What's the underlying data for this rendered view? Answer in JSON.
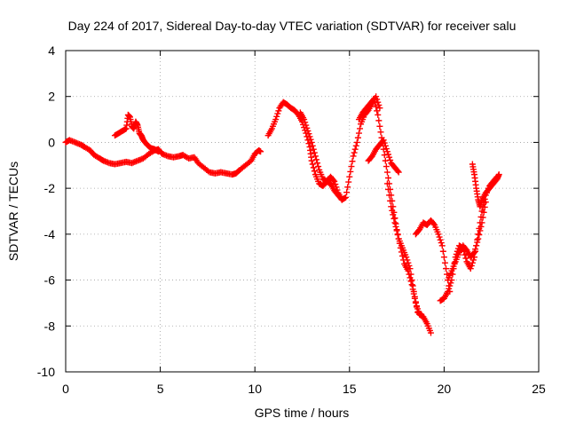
{
  "chart_data": {
    "type": "scatter",
    "title": "Day 224 of 2017, Sidereal Day-to-day VTEC variation (SDTVAR) for receiver salu",
    "xlabel": "GPS time / hours",
    "ylabel": "SDTVAR / TECUs",
    "xlim": [
      0,
      25
    ],
    "ylim": [
      -10,
      4
    ],
    "xticks": [
      0,
      5,
      10,
      15,
      20,
      25
    ],
    "yticks": [
      -10,
      -8,
      -6,
      -4,
      -2,
      0,
      2,
      4
    ],
    "xtick_labels": [
      "0",
      "5",
      "10",
      "15",
      "20",
      "25"
    ],
    "ytick_labels": [
      "-10",
      "-8",
      "-6",
      "-4",
      "-2",
      "0",
      "2",
      "4"
    ],
    "grid": true,
    "marker": "+",
    "color": "#ff0000",
    "series": [
      {
        "x": [
          0.0,
          0.2,
          0.5,
          0.8,
          1.0,
          1.3,
          1.5,
          1.8,
          2.0,
          2.3,
          2.6,
          2.9,
          3.2,
          3.5,
          3.8,
          4.1,
          4.4,
          4.7,
          4.9,
          5.1,
          5.4,
          5.7,
          6.0,
          6.2,
          6.5,
          6.8,
          7.0,
          7.3,
          7.6,
          7.9,
          8.2,
          8.5,
          8.8,
          9.0,
          9.2,
          9.5,
          9.8,
          10.0,
          10.2,
          10.3
        ],
        "y": [
          0.0,
          0.1,
          0.0,
          -0.1,
          -0.2,
          -0.35,
          -0.55,
          -0.7,
          -0.8,
          -0.9,
          -0.95,
          -0.9,
          -0.85,
          -0.9,
          -0.8,
          -0.7,
          -0.5,
          -0.35,
          -0.3,
          -0.5,
          -0.6,
          -0.65,
          -0.6,
          -0.55,
          -0.7,
          -0.65,
          -0.9,
          -1.1,
          -1.3,
          -1.35,
          -1.3,
          -1.35,
          -1.4,
          -1.35,
          -1.2,
          -1.0,
          -0.8,
          -0.5,
          -0.35,
          -0.4
        ]
      },
      {
        "x": [
          2.6,
          2.8,
          3.0,
          3.2,
          3.3,
          3.4,
          3.5,
          3.6,
          3.7,
          3.8,
          3.9,
          4.0,
          4.1,
          4.3,
          4.5,
          4.7,
          4.9
        ],
        "y": [
          0.3,
          0.4,
          0.5,
          0.6,
          1.2,
          1.1,
          0.7,
          0.6,
          0.9,
          0.75,
          0.4,
          0.3,
          0.1,
          -0.1,
          -0.25,
          -0.3,
          -0.4
        ]
      },
      {
        "x": [
          10.7,
          10.9,
          11.1,
          11.3,
          11.5,
          11.7,
          11.9,
          12.1,
          12.3,
          12.5,
          12.7,
          12.9,
          13.0,
          13.2,
          13.4,
          13.6,
          13.8,
          14.0,
          14.2,
          14.4,
          14.6,
          14.8,
          15.0,
          15.2,
          15.4,
          15.6,
          15.8,
          16.0,
          16.2,
          16.4,
          16.6
        ],
        "y": [
          0.3,
          0.6,
          1.0,
          1.5,
          1.75,
          1.65,
          1.5,
          1.4,
          1.2,
          0.9,
          0.4,
          -0.2,
          -0.8,
          -1.4,
          -1.8,
          -1.9,
          -1.7,
          -1.8,
          -2.1,
          -2.3,
          -2.5,
          -2.4,
          -1.5,
          -0.6,
          0.0,
          0.8,
          1.2,
          1.4,
          1.7,
          2.0,
          1.5
        ]
      },
      {
        "x": [
          12.4,
          12.6,
          12.8,
          13.0,
          13.2,
          13.4,
          13.6,
          13.8,
          14.0,
          14.2,
          14.4,
          14.6
        ],
        "y": [
          1.3,
          1.0,
          0.5,
          0.0,
          -0.6,
          -1.2,
          -1.6,
          -1.7,
          -1.5,
          -1.7,
          -2.2,
          -2.5
        ]
      },
      {
        "x": [
          16.0,
          16.2,
          16.4,
          16.6,
          16.8,
          17.0,
          17.2,
          17.4,
          17.6
        ],
        "y": [
          -0.8,
          -0.6,
          -0.3,
          -0.1,
          0.1,
          -0.4,
          -0.9,
          -1.1,
          -1.3
        ]
      },
      {
        "x": [
          15.5,
          15.7,
          15.9,
          16.1,
          16.3,
          16.5,
          16.7,
          16.9,
          17.1,
          17.3,
          17.5,
          17.7,
          17.9,
          18.1,
          18.3,
          18.5,
          18.7,
          18.9,
          19.1,
          19.3
        ],
        "y": [
          1.0,
          1.3,
          1.5,
          1.7,
          1.9,
          1.2,
          0.2,
          -0.8,
          -1.8,
          -2.8,
          -3.8,
          -4.6,
          -5.3,
          -5.6,
          -6.2,
          -7.0,
          -7.5,
          -7.6,
          -7.9,
          -8.3
        ]
      },
      {
        "x": [
          17.0,
          17.2,
          17.4,
          17.6,
          17.8,
          18.0,
          18.2,
          18.4,
          18.6,
          18.8
        ],
        "y": [
          -1.8,
          -2.8,
          -3.5,
          -4.2,
          -4.6,
          -5.0,
          -5.5,
          -6.5,
          -7.4,
          -7.5
        ]
      },
      {
        "x": [
          18.5,
          18.7,
          18.9,
          19.1,
          19.3,
          19.5,
          19.7,
          19.9,
          20.1,
          20.3
        ],
        "y": [
          -4.0,
          -3.8,
          -3.5,
          -3.6,
          -3.4,
          -3.6,
          -4.0,
          -4.5,
          -5.5,
          -6.5
        ]
      },
      {
        "x": [
          19.8,
          20.0,
          20.2,
          20.4,
          20.6,
          20.8,
          21.0,
          21.2,
          21.4,
          21.6,
          21.8,
          22.0,
          22.2,
          22.4,
          22.6,
          22.8
        ],
        "y": [
          -6.9,
          -6.8,
          -6.5,
          -6.0,
          -5.0,
          -4.5,
          -4.6,
          -5.2,
          -5.5,
          -5.0,
          -4.0,
          -3.0,
          -2.3,
          -1.9,
          -1.7,
          -1.5
        ]
      },
      {
        "x": [
          20.2,
          20.4,
          20.6,
          20.8,
          21.0,
          21.2,
          21.4,
          21.6,
          21.8,
          22.0,
          22.2
        ],
        "y": [
          -6.0,
          -5.6,
          -5.2,
          -4.8,
          -4.5,
          -4.7,
          -5.0,
          -4.8,
          -4.2,
          -3.5,
          -2.6
        ]
      },
      {
        "x": [
          21.5,
          21.6,
          21.7,
          21.8,
          21.9,
          22.0,
          22.2,
          22.4,
          22.6,
          22.8,
          22.9
        ],
        "y": [
          -0.95,
          -1.4,
          -2.0,
          -2.5,
          -2.8,
          -2.5,
          -2.2,
          -2.0,
          -1.8,
          -1.6,
          -1.4
        ]
      }
    ]
  }
}
